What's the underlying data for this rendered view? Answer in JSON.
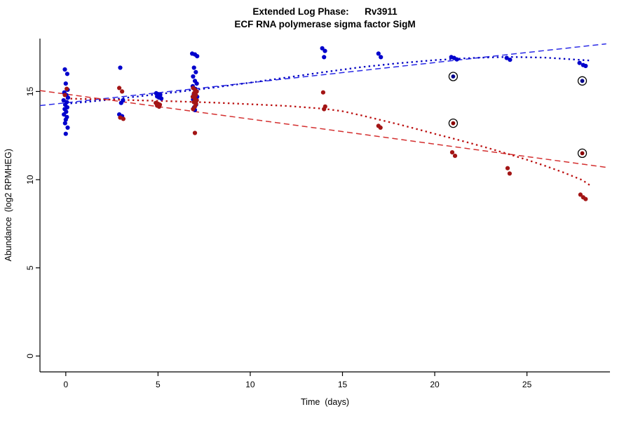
{
  "chart_data": {
    "type": "scatter",
    "title": "Extended Log Phase:      Rv3911",
    "subtitle": "ECF RNA polymerase sigma factor SigM",
    "xlabel": "Time  (days)",
    "ylabel": "Abundance  (log2 RPMHEG)",
    "x_ticks": [
      0,
      5,
      10,
      15,
      20,
      25
    ],
    "y_ticks": [
      0,
      5,
      10,
      15
    ],
    "xlim": [
      -1.4,
      29.5
    ],
    "ylim": [
      -0.9,
      18.0
    ],
    "grid": false,
    "legend": "none",
    "colors": {
      "blue_points": "#0000cc",
      "red_points": "#a31515",
      "blue_dashed": "#2a2ae6",
      "red_dashed": "#d43030",
      "blue_dotted": "#0000c0",
      "red_dotted": "#bb0f0f",
      "outlier_ring": "#000000",
      "axis": "#000000"
    },
    "series": [
      {
        "name": "condition-1-linear-fit",
        "type": "line",
        "style": "dashed",
        "color": "#2a2ae6",
        "points": [
          [
            -1.4,
            14.2
          ],
          [
            29.3,
            17.7
          ]
        ]
      },
      {
        "name": "condition-2-linear-fit",
        "type": "line",
        "style": "dashed",
        "color": "#d43030",
        "points": [
          [
            -1.4,
            15.05
          ],
          [
            29.3,
            10.7
          ]
        ]
      },
      {
        "name": "condition-1-smooth-fit",
        "type": "line",
        "style": "dotted",
        "color": "#0000c0",
        "points": [
          [
            0,
            14.3
          ],
          [
            2,
            14.5
          ],
          [
            4,
            14.73
          ],
          [
            6,
            14.97
          ],
          [
            8,
            15.22
          ],
          [
            10,
            15.5
          ],
          [
            12,
            15.8
          ],
          [
            14,
            16.1
          ],
          [
            16,
            16.38
          ],
          [
            18,
            16.6
          ],
          [
            20,
            16.78
          ],
          [
            22,
            16.9
          ],
          [
            24,
            16.96
          ],
          [
            26,
            16.92
          ],
          [
            28.5,
            16.75
          ]
        ]
      },
      {
        "name": "condition-2-smooth-fit",
        "type": "line",
        "style": "dotted",
        "color": "#bb0f0f",
        "points": [
          [
            0,
            14.6
          ],
          [
            2,
            14.55
          ],
          [
            4,
            14.5
          ],
          [
            6,
            14.44
          ],
          [
            8,
            14.37
          ],
          [
            10,
            14.28
          ],
          [
            12,
            14.18
          ],
          [
            14,
            14.02
          ],
          [
            15,
            13.88
          ],
          [
            16,
            13.65
          ],
          [
            17,
            13.4
          ],
          [
            18,
            13.15
          ],
          [
            19,
            12.88
          ],
          [
            20,
            12.6
          ],
          [
            21,
            12.33
          ],
          [
            22,
            12.05
          ],
          [
            23,
            11.76
          ],
          [
            24,
            11.45
          ],
          [
            25,
            11.13
          ],
          [
            26,
            10.78
          ],
          [
            27,
            10.4
          ],
          [
            28,
            9.98
          ],
          [
            28.5,
            9.62
          ]
        ]
      },
      {
        "name": "condition-1-points",
        "type": "points",
        "color": "#0000cc",
        "points": [
          [
            -0.05,
            16.25
          ],
          [
            0.08,
            16.0
          ],
          [
            0.0,
            15.45
          ],
          [
            0.1,
            15.1
          ],
          [
            -0.08,
            14.95
          ],
          [
            0.03,
            14.8
          ],
          [
            0.12,
            14.65
          ],
          [
            -0.12,
            14.5
          ],
          [
            0.05,
            14.4
          ],
          [
            -0.03,
            14.25
          ],
          [
            0.08,
            14.1
          ],
          [
            -0.06,
            14.0
          ],
          [
            0.02,
            13.85
          ],
          [
            -0.1,
            13.7
          ],
          [
            0.06,
            13.55
          ],
          [
            0.0,
            13.4
          ],
          [
            -0.04,
            13.2
          ],
          [
            0.1,
            12.95
          ],
          [
            0.0,
            12.6
          ],
          [
            2.95,
            16.35
          ],
          [
            3.1,
            14.5
          ],
          [
            3.0,
            14.35
          ],
          [
            2.9,
            13.7
          ],
          [
            3.05,
            13.6
          ],
          [
            4.9,
            14.9
          ],
          [
            5.0,
            14.85
          ],
          [
            5.12,
            14.8
          ],
          [
            4.95,
            14.72
          ],
          [
            5.05,
            14.66
          ],
          [
            5.18,
            14.6
          ],
          [
            6.85,
            17.15
          ],
          [
            7.0,
            17.1
          ],
          [
            7.12,
            17.0
          ],
          [
            6.95,
            16.35
          ],
          [
            7.05,
            16.1
          ],
          [
            6.9,
            15.85
          ],
          [
            7.0,
            15.6
          ],
          [
            7.1,
            15.45
          ],
          [
            6.88,
            15.3
          ],
          [
            7.02,
            15.15
          ],
          [
            7.08,
            15.0
          ],
          [
            6.94,
            14.85
          ],
          [
            7.12,
            14.7
          ],
          [
            6.9,
            14.55
          ],
          [
            7.0,
            14.4
          ],
          [
            7.06,
            14.25
          ],
          [
            6.96,
            14.1
          ],
          [
            7.0,
            13.95
          ],
          [
            13.9,
            17.45
          ],
          [
            14.05,
            17.3
          ],
          [
            14.0,
            16.95
          ],
          [
            16.95,
            17.15
          ],
          [
            17.08,
            16.95
          ],
          [
            20.9,
            16.95
          ],
          [
            21.05,
            16.9
          ],
          [
            21.2,
            16.82
          ],
          [
            23.9,
            16.9
          ],
          [
            24.08,
            16.8
          ],
          [
            27.85,
            16.62
          ],
          [
            28.05,
            16.5
          ],
          [
            28.18,
            16.45
          ]
        ]
      },
      {
        "name": "condition-2-points",
        "type": "points",
        "color": "#a31515",
        "points": [
          [
            0.05,
            15.15
          ],
          [
            -0.05,
            14.8
          ],
          [
            2.9,
            15.2
          ],
          [
            3.05,
            15.0
          ],
          [
            2.95,
            13.52
          ],
          [
            3.12,
            13.45
          ],
          [
            4.88,
            14.35
          ],
          [
            5.0,
            14.3
          ],
          [
            5.1,
            14.25
          ],
          [
            4.95,
            14.2
          ],
          [
            5.06,
            14.14
          ],
          [
            6.9,
            15.2
          ],
          [
            7.0,
            15.1
          ],
          [
            7.1,
            15.0
          ],
          [
            6.95,
            14.9
          ],
          [
            7.05,
            14.8
          ],
          [
            6.88,
            14.7
          ],
          [
            7.0,
            14.6
          ],
          [
            7.1,
            14.5
          ],
          [
            6.94,
            14.4
          ],
          [
            7.06,
            14.3
          ],
          [
            7.0,
            14.15
          ],
          [
            6.9,
            14.0
          ],
          [
            7.0,
            12.65
          ],
          [
            13.95,
            14.95
          ],
          [
            14.06,
            14.15
          ],
          [
            14.0,
            14.0
          ],
          [
            16.95,
            13.05
          ],
          [
            17.06,
            12.95
          ],
          [
            20.95,
            11.55
          ],
          [
            21.1,
            11.35
          ],
          [
            23.95,
            10.65
          ],
          [
            24.06,
            10.35
          ],
          [
            27.9,
            9.15
          ],
          [
            28.05,
            9.0
          ],
          [
            28.18,
            8.9
          ]
        ]
      },
      {
        "name": "flagged-outliers",
        "type": "circled-points",
        "outline": "#000000",
        "points": [
          {
            "x": 21,
            "y": 15.85,
            "color": "#00008b"
          },
          {
            "x": 28,
            "y": 15.6,
            "color": "#00008b"
          },
          {
            "x": 21,
            "y": 13.2,
            "color": "#8b0000"
          },
          {
            "x": 28,
            "y": 11.5,
            "color": "#8b0000"
          }
        ]
      }
    ]
  }
}
